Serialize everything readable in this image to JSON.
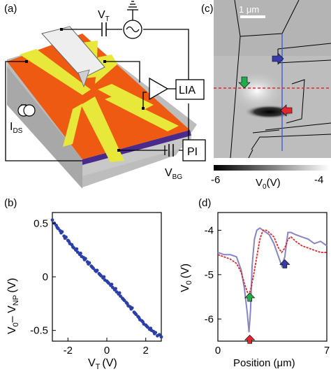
{
  "panels": {
    "a": {
      "label": "(a)",
      "labels": {
        "vt": "V",
        "vt_sub": "T",
        "lia": "LIA",
        "ids": "I",
        "ids_sub": "DS",
        "pi": "PI",
        "vbg": "V",
        "vbg_sub": "BG"
      },
      "colors": {
        "substrate": "#ee5a12",
        "electrode": "#e8e83a",
        "base": "#b8b8b8",
        "backgate": "#4a2a8a",
        "cantilever": "#e8e8e8"
      }
    },
    "c": {
      "label": "(c)",
      "scalebar": "1 μm",
      "colorbar_min": "-6",
      "colorbar_max": "-4",
      "colorbar_label": "V",
      "colorbar_label_sub": "0",
      "colorbar_unit": "(V)",
      "arrow_colors": {
        "blue": "#3a3aa8",
        "green": "#1fae4a",
        "red": "#e3262b"
      },
      "line_colors": {
        "vertical": "#3b5fd0",
        "horizontal": "#e3262b"
      }
    },
    "b": {
      "label": "(b)",
      "ylabel_main": "V",
      "ylabel_sub0": "0",
      "ylabel_dash": "– V",
      "ylabel_subNP": "NP",
      "ylabel_unit": "(V)",
      "xlabel_main": "V",
      "xlabel_sub": "T",
      "xlabel_unit": "(V)"
    },
    "d": {
      "label": "(d)",
      "ylabel_main": "V",
      "ylabel_sub": "0",
      "ylabel_unit": "(V)",
      "xlabel": "Position (μm)"
    }
  },
  "chart_data": [
    {
      "type": "scatter",
      "panel": "b",
      "xlim": [
        -2.8,
        2.8
      ],
      "ylim": [
        -0.6,
        0.6
      ],
      "xticks": [
        -2,
        0,
        2
      ],
      "yticks": [
        0.5,
        0,
        -0.5
      ],
      "xtick_labels": [
        "-2",
        "0",
        "2"
      ],
      "ytick_labels": [
        "0.5",
        "0",
        "-0.5"
      ],
      "color": "#2b3fa8",
      "x": [
        -2.8,
        -2.7,
        -2.6,
        -2.55,
        -2.5,
        -2.4,
        -2.35,
        -2.3,
        -2.2,
        -2.15,
        -2.1,
        -2.0,
        -1.95,
        -1.9,
        -1.8,
        -1.75,
        -1.7,
        -1.6,
        -1.55,
        -1.5,
        -1.4,
        -1.35,
        -1.3,
        -1.2,
        -1.15,
        -1.1,
        -1.0,
        -0.95,
        -0.9,
        -0.8,
        -0.75,
        -0.7,
        -0.6,
        -0.55,
        -0.5,
        -0.4,
        -0.35,
        -0.3,
        -0.2,
        -0.15,
        -0.1,
        0.0,
        0.05,
        0.1,
        0.2,
        0.25,
        0.3,
        0.4,
        0.45,
        0.5,
        0.6,
        0.65,
        0.7,
        0.8,
        0.85,
        0.9,
        1.0,
        1.05,
        1.1,
        1.2,
        1.25,
        1.3,
        1.4,
        1.45,
        1.5,
        1.6,
        1.65,
        1.7,
        1.8,
        1.85,
        1.9,
        2.0,
        2.05,
        2.1,
        2.2,
        2.25,
        2.3,
        2.4,
        2.45,
        2.5,
        2.6,
        2.7,
        2.8
      ],
      "y": [
        0.53,
        0.5,
        0.48,
        0.46,
        0.45,
        0.43,
        0.41,
        0.42,
        0.38,
        0.36,
        0.37,
        0.34,
        0.33,
        0.31,
        0.3,
        0.28,
        0.27,
        0.25,
        0.26,
        0.23,
        0.21,
        0.22,
        0.19,
        0.18,
        0.16,
        0.17,
        0.14,
        0.12,
        0.13,
        0.1,
        0.09,
        0.08,
        0.06,
        0.05,
        0.06,
        0.03,
        0.02,
        0.01,
        -0.01,
        0.0,
        -0.03,
        -0.04,
        -0.05,
        -0.06,
        -0.08,
        -0.07,
        -0.1,
        -0.12,
        -0.11,
        -0.14,
        -0.16,
        -0.15,
        -0.18,
        -0.2,
        -0.21,
        -0.22,
        -0.24,
        -0.25,
        -0.27,
        -0.28,
        -0.3,
        -0.29,
        -0.33,
        -0.34,
        -0.35,
        -0.37,
        -0.38,
        -0.4,
        -0.41,
        -0.42,
        -0.44,
        -0.45,
        -0.46,
        -0.47,
        -0.49,
        -0.48,
        -0.5,
        -0.51,
        -0.53,
        -0.52,
        -0.55,
        -0.54,
        -0.56
      ]
    },
    {
      "type": "line",
      "panel": "d",
      "xlim": [
        0,
        7
      ],
      "ylim": [
        -6.5,
        -3.6
      ],
      "xticks": [
        0,
        7
      ],
      "yticks": [
        -4,
        -5,
        -6
      ],
      "xtick_labels": [
        "0",
        "7"
      ],
      "ytick_labels": [
        "-4",
        "-5",
        "-6"
      ],
      "series": [
        {
          "color": "#8585c8",
          "x": [
            0,
            0.4,
            0.8,
            1.2,
            1.5,
            1.7,
            1.9,
            2.0,
            2.1,
            2.2,
            2.35,
            2.5,
            2.7,
            2.9,
            3.1,
            3.3,
            3.6,
            3.9,
            4.1,
            4.3,
            4.5,
            4.7,
            5.0,
            5.4,
            5.8,
            6.2,
            6.6,
            7.0
          ],
          "y": [
            -4.5,
            -4.55,
            -4.55,
            -4.6,
            -4.9,
            -5.3,
            -5.9,
            -6.3,
            -5.8,
            -4.8,
            -4.2,
            -4.0,
            -3.95,
            -4.0,
            -4.05,
            -4.1,
            -4.3,
            -4.6,
            -4.8,
            -4.6,
            -4.05,
            -4.05,
            -4.1,
            -4.15,
            -4.2,
            -4.3,
            -4.25,
            -4.35
          ]
        },
        {
          "color": "#e3262b",
          "x": [
            0,
            0.4,
            0.8,
            1.2,
            1.5,
            1.7,
            1.9,
            2.0,
            2.1,
            2.3,
            2.5,
            2.7,
            2.9,
            3.1,
            3.3,
            3.6,
            3.9,
            4.1,
            4.3,
            4.5,
            4.7,
            5.0,
            5.4,
            5.8,
            6.2,
            6.6,
            7.0
          ],
          "y": [
            -4.55,
            -4.6,
            -4.65,
            -4.75,
            -4.95,
            -5.2,
            -5.4,
            -5.45,
            -5.35,
            -5.0,
            -4.6,
            -4.2,
            -4.0,
            -4.0,
            -4.05,
            -4.15,
            -4.4,
            -4.5,
            -4.4,
            -4.2,
            -4.15,
            -4.25,
            -4.35,
            -4.4,
            -4.45,
            -4.5,
            -4.5
          ]
        }
      ],
      "markers": [
        {
          "x": 2.05,
          "y": -5.35,
          "color": "#1fae4a",
          "dir": "up"
        },
        {
          "x": 2.05,
          "y": -6.3,
          "color": "#e3262b",
          "dir": "up"
        },
        {
          "x": 4.3,
          "y": -4.6,
          "color": "#3a3aa8",
          "dir": "up"
        }
      ]
    }
  ]
}
